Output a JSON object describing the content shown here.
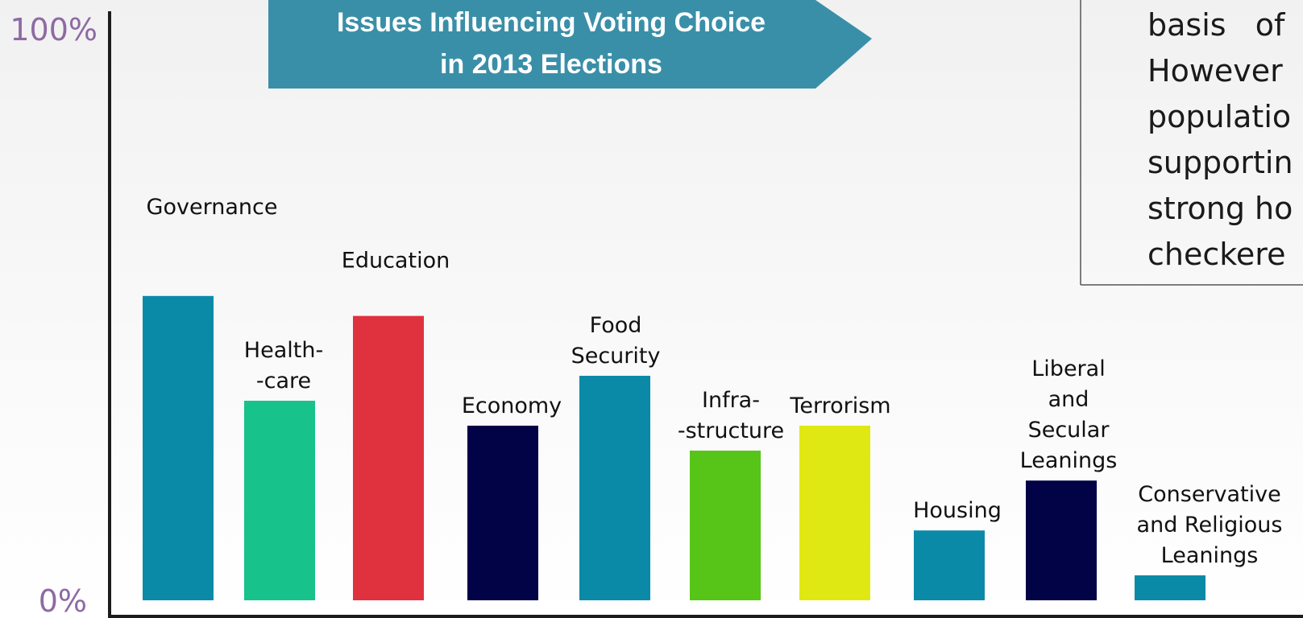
{
  "chart_data": {
    "type": "bar",
    "title": [
      "Issues Influencing Voting Choice",
      "in 2013 Elections"
    ],
    "y_tick_labels": [
      "100%",
      "0%"
    ],
    "ylim": [
      0,
      100
    ],
    "grid": false,
    "categories": [
      [
        "Governance"
      ],
      [
        "Health-",
        "-care"
      ],
      [
        "Education"
      ],
      [
        "Economy"
      ],
      [
        "Food",
        "Security"
      ],
      [
        "Infra-",
        "-structure"
      ],
      [
        "Terrorism"
      ],
      [
        "Housing"
      ],
      [
        "Liberal",
        "and",
        "Secular",
        "Leanings"
      ],
      [
        "Conservative",
        "and Religious",
        "Leanings"
      ]
    ],
    "values": [
      61,
      40,
      57,
      35,
      45,
      30,
      35,
      14,
      24,
      5
    ],
    "colors": [
      "#0b8aa8",
      "#17c28b",
      "#e0313f",
      "#020247",
      "#0b8aa8",
      "#57c418",
      "#e0e814",
      "#0b8aa8",
      "#020247",
      "#0b8aa8"
    ]
  },
  "colors": {
    "title_banner": "#3a8fa8",
    "axis": "#1c1c1c",
    "tick_label": "#8e6aa3"
  },
  "note": {
    "lines": [
      "basis   of",
      "However",
      "populatio",
      "supportin",
      "strong ho",
      "checkere"
    ]
  }
}
